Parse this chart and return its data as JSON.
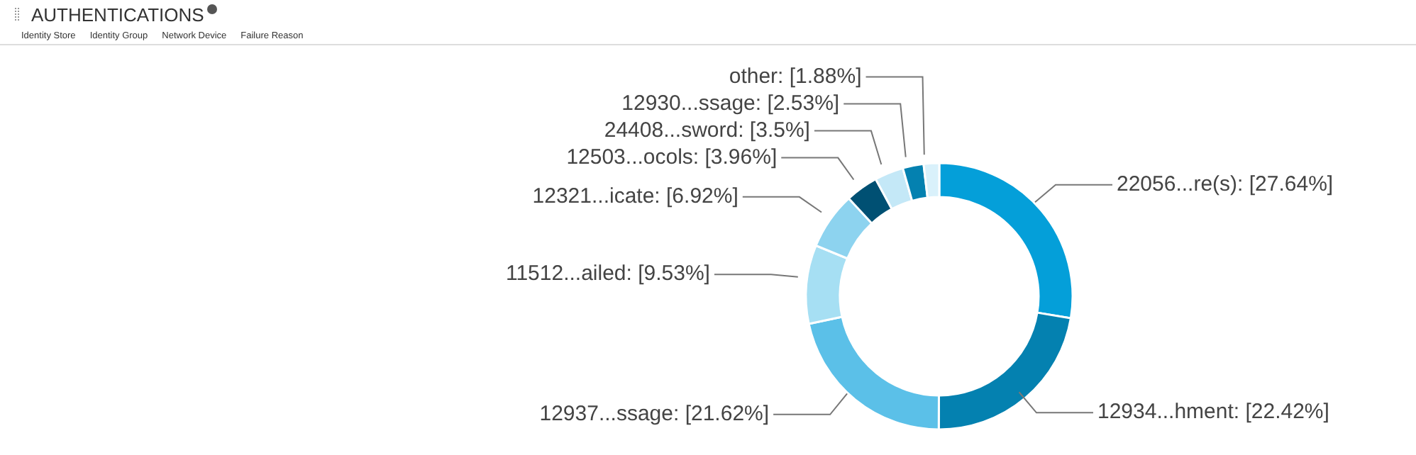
{
  "chart_data": {
    "type": "donut",
    "title": "AUTHENTICATIONS",
    "annotations": [
      "Identity Store",
      "Identity Group",
      "Network Device",
      "Failure Reason"
    ],
    "categories": [
      "22056...re(s)",
      "12934...hment",
      "12937...ssage",
      "11512...ailed",
      "12321...icate",
      "12503...ocols",
      "24408...sword",
      "12930...ssage",
      "other"
    ],
    "values": [
      27.64,
      22.42,
      21.62,
      9.53,
      6.92,
      3.96,
      3.5,
      2.53,
      1.88
    ],
    "value_labels": [
      "[27.64%]",
      "[22.42%]",
      "[21.62%]",
      "[9.53%]",
      "[6.92%]",
      "[3.96%]",
      "[3.5%]",
      "[2.53%]",
      "[1.88%]"
    ],
    "colors": [
      "#049fd9",
      "#0481b0",
      "#5bc0e8",
      "#a6dff3",
      "#8dd3ef",
      "#005073",
      "#c4e8f7",
      "#0481b0",
      "#d9f1fb"
    ]
  }
}
